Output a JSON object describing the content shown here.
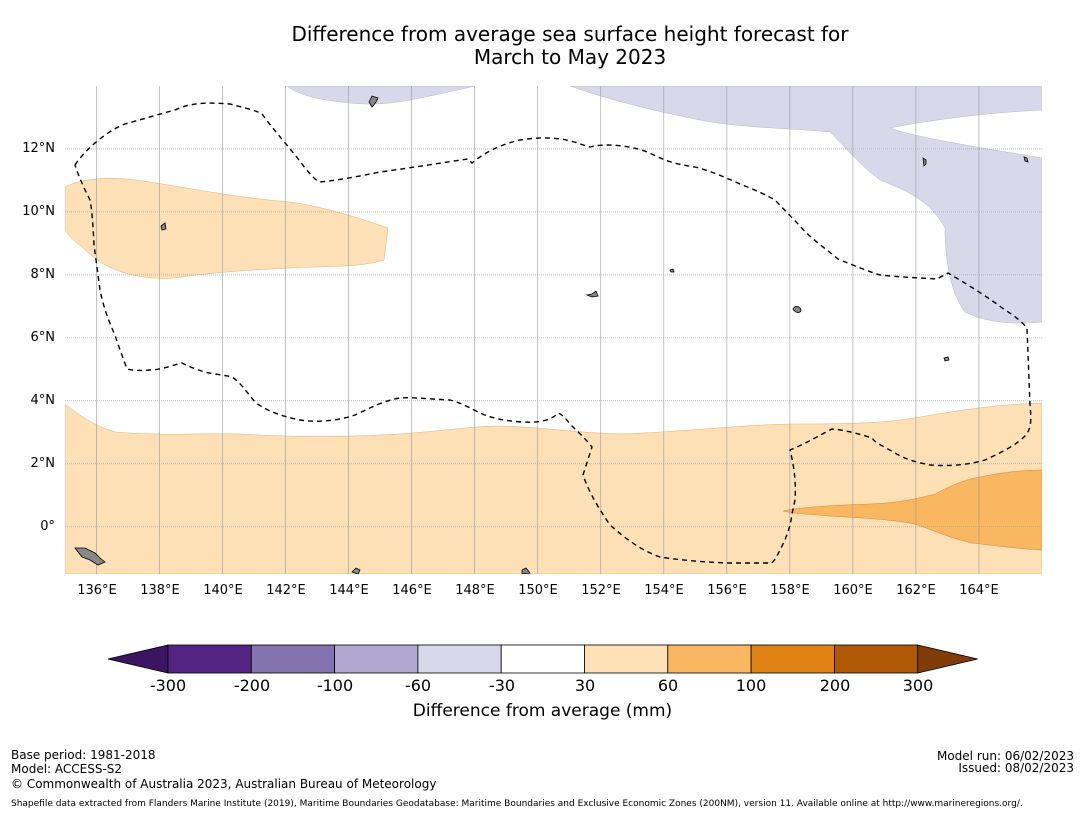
{
  "title": {
    "line1": "Difference from average sea surface height forecast for",
    "line2": "March to May 2023"
  },
  "map": {
    "lat_labels": [
      "12°N",
      "10°N",
      "8°N",
      "6°N",
      "4°N",
      "2°N",
      "0°"
    ],
    "lon_labels": [
      "136°E",
      "138°E",
      "140°E",
      "142°E",
      "144°E",
      "146°E",
      "148°E",
      "150°E",
      "152°E",
      "154°E",
      "156°E",
      "158°E",
      "160°E",
      "162°E",
      "164°E"
    ],
    "lon_range": [
      135,
      166
    ],
    "lat_range": [
      -1.5,
      14
    ],
    "anomaly_regions": [
      {
        "category": "-60 to -30",
        "location": "north"
      },
      {
        "category": "30 to 60",
        "location": "west and south"
      },
      {
        "category": "60 to 100",
        "location": "south-east"
      }
    ],
    "eez_boundary_style": "dashed"
  },
  "colorbar": {
    "title": "Difference from average (mm)",
    "tick_labels": [
      "-300",
      "-200",
      "-100",
      "-60",
      "-30",
      "30",
      "60",
      "100",
      "200",
      "300"
    ],
    "colors": [
      "#3b1563",
      "#542583",
      "#8472ae",
      "#afa7d0",
      "#d8d8ea",
      "#ffffff",
      "#fde0b6",
      "#f8b760",
      "#e08214",
      "#b15807",
      "#7f3b08"
    ]
  },
  "footer": {
    "base_period": "Base period: 1981-2018",
    "model": "Model: ACCESS-S2",
    "copyright": "© Commonwealth of Australia 2023, Australian Bureau of Meteorology",
    "model_run": "Model run: 06/02/2023",
    "issued": "Issued: 08/02/2023",
    "source": "Shapefile data extracted from Flanders Marine Institute (2019), Maritime Boundaries Geodatabase: Maritime Boundaries and Exclusive Economic Zones (200NM), version 11. Available online at http://www.marineregions.org/."
  }
}
